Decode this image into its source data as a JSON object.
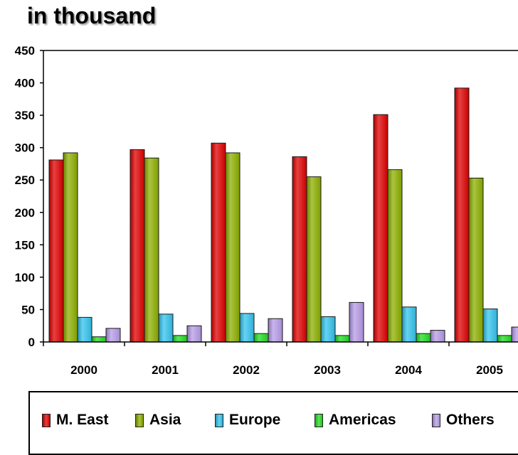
{
  "chart_data": {
    "type": "bar",
    "title": "in thousand",
    "categories": [
      "2000",
      "2001",
      "2002",
      "2003",
      "2004",
      "2005"
    ],
    "series": [
      {
        "name": "M. East",
        "color": "#e00000",
        "values": [
          281,
          297,
          307,
          286,
          351,
          392
        ]
      },
      {
        "name": "Asia",
        "color": "#8db000",
        "values": [
          292,
          284,
          292,
          255,
          266,
          253
        ]
      },
      {
        "name": "Europe",
        "color": "#33c4ee",
        "values": [
          38,
          43,
          44,
          39,
          54,
          51
        ]
      },
      {
        "name": "Americas",
        "color": "#22dd22",
        "values": [
          8,
          10,
          13,
          10,
          13,
          10
        ]
      },
      {
        "name": "Others",
        "color": "#b79ce8",
        "values": [
          21,
          25,
          36,
          61,
          18,
          23
        ]
      }
    ],
    "yticks": [
      0,
      50,
      100,
      150,
      200,
      250,
      300,
      350,
      400,
      450
    ],
    "ylim": [
      0,
      450
    ],
    "xlabel": "",
    "ylabel": "",
    "legend_position": "bottom"
  }
}
